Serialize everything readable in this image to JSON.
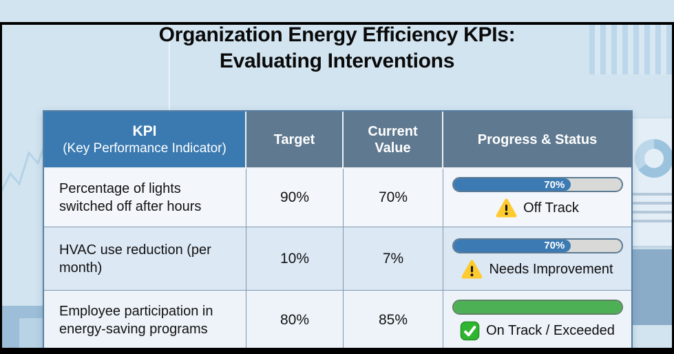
{
  "title": {
    "line1": "Organization Energy Efficiency KPIs:",
    "line2": "Evaluating Interventions"
  },
  "table": {
    "headers": {
      "kpi_line1": "KPI",
      "kpi_line2": "(Key Performance Indicator)",
      "target": "Target",
      "current": "Current Value",
      "progress": "Progress & Status"
    },
    "rows": [
      {
        "kpi": "Percentage of lights switched off after hours",
        "target": "90%",
        "current": "70%",
        "progress_percent": 70,
        "progress_label": "70%",
        "bar_color": "#3b7ab3",
        "status_icon": "warning",
        "status": "Off Track"
      },
      {
        "kpi": "HVAC use reduction (per month)",
        "target": "10%",
        "current": "7%",
        "progress_percent": 70,
        "progress_label": "70%",
        "bar_color": "#3b7ab3",
        "status_icon": "warning",
        "status": "Needs Improvement"
      },
      {
        "kpi": "Employee participation in energy-saving programs",
        "target": "80%",
        "current": "85%",
        "progress_percent": 100,
        "progress_label": "",
        "bar_color": "#4db054",
        "status_icon": "check",
        "status": "On Track / Exceeded"
      }
    ]
  },
  "colors": {
    "background": "#d2e4f0",
    "header_kpi": "#3a7ab1",
    "header_gray": "#5f7990",
    "bar_blue": "#3b7ab3",
    "bar_green": "#4db054",
    "warning_yellow": "#fdcb2f",
    "check_green": "#2fb52f"
  }
}
